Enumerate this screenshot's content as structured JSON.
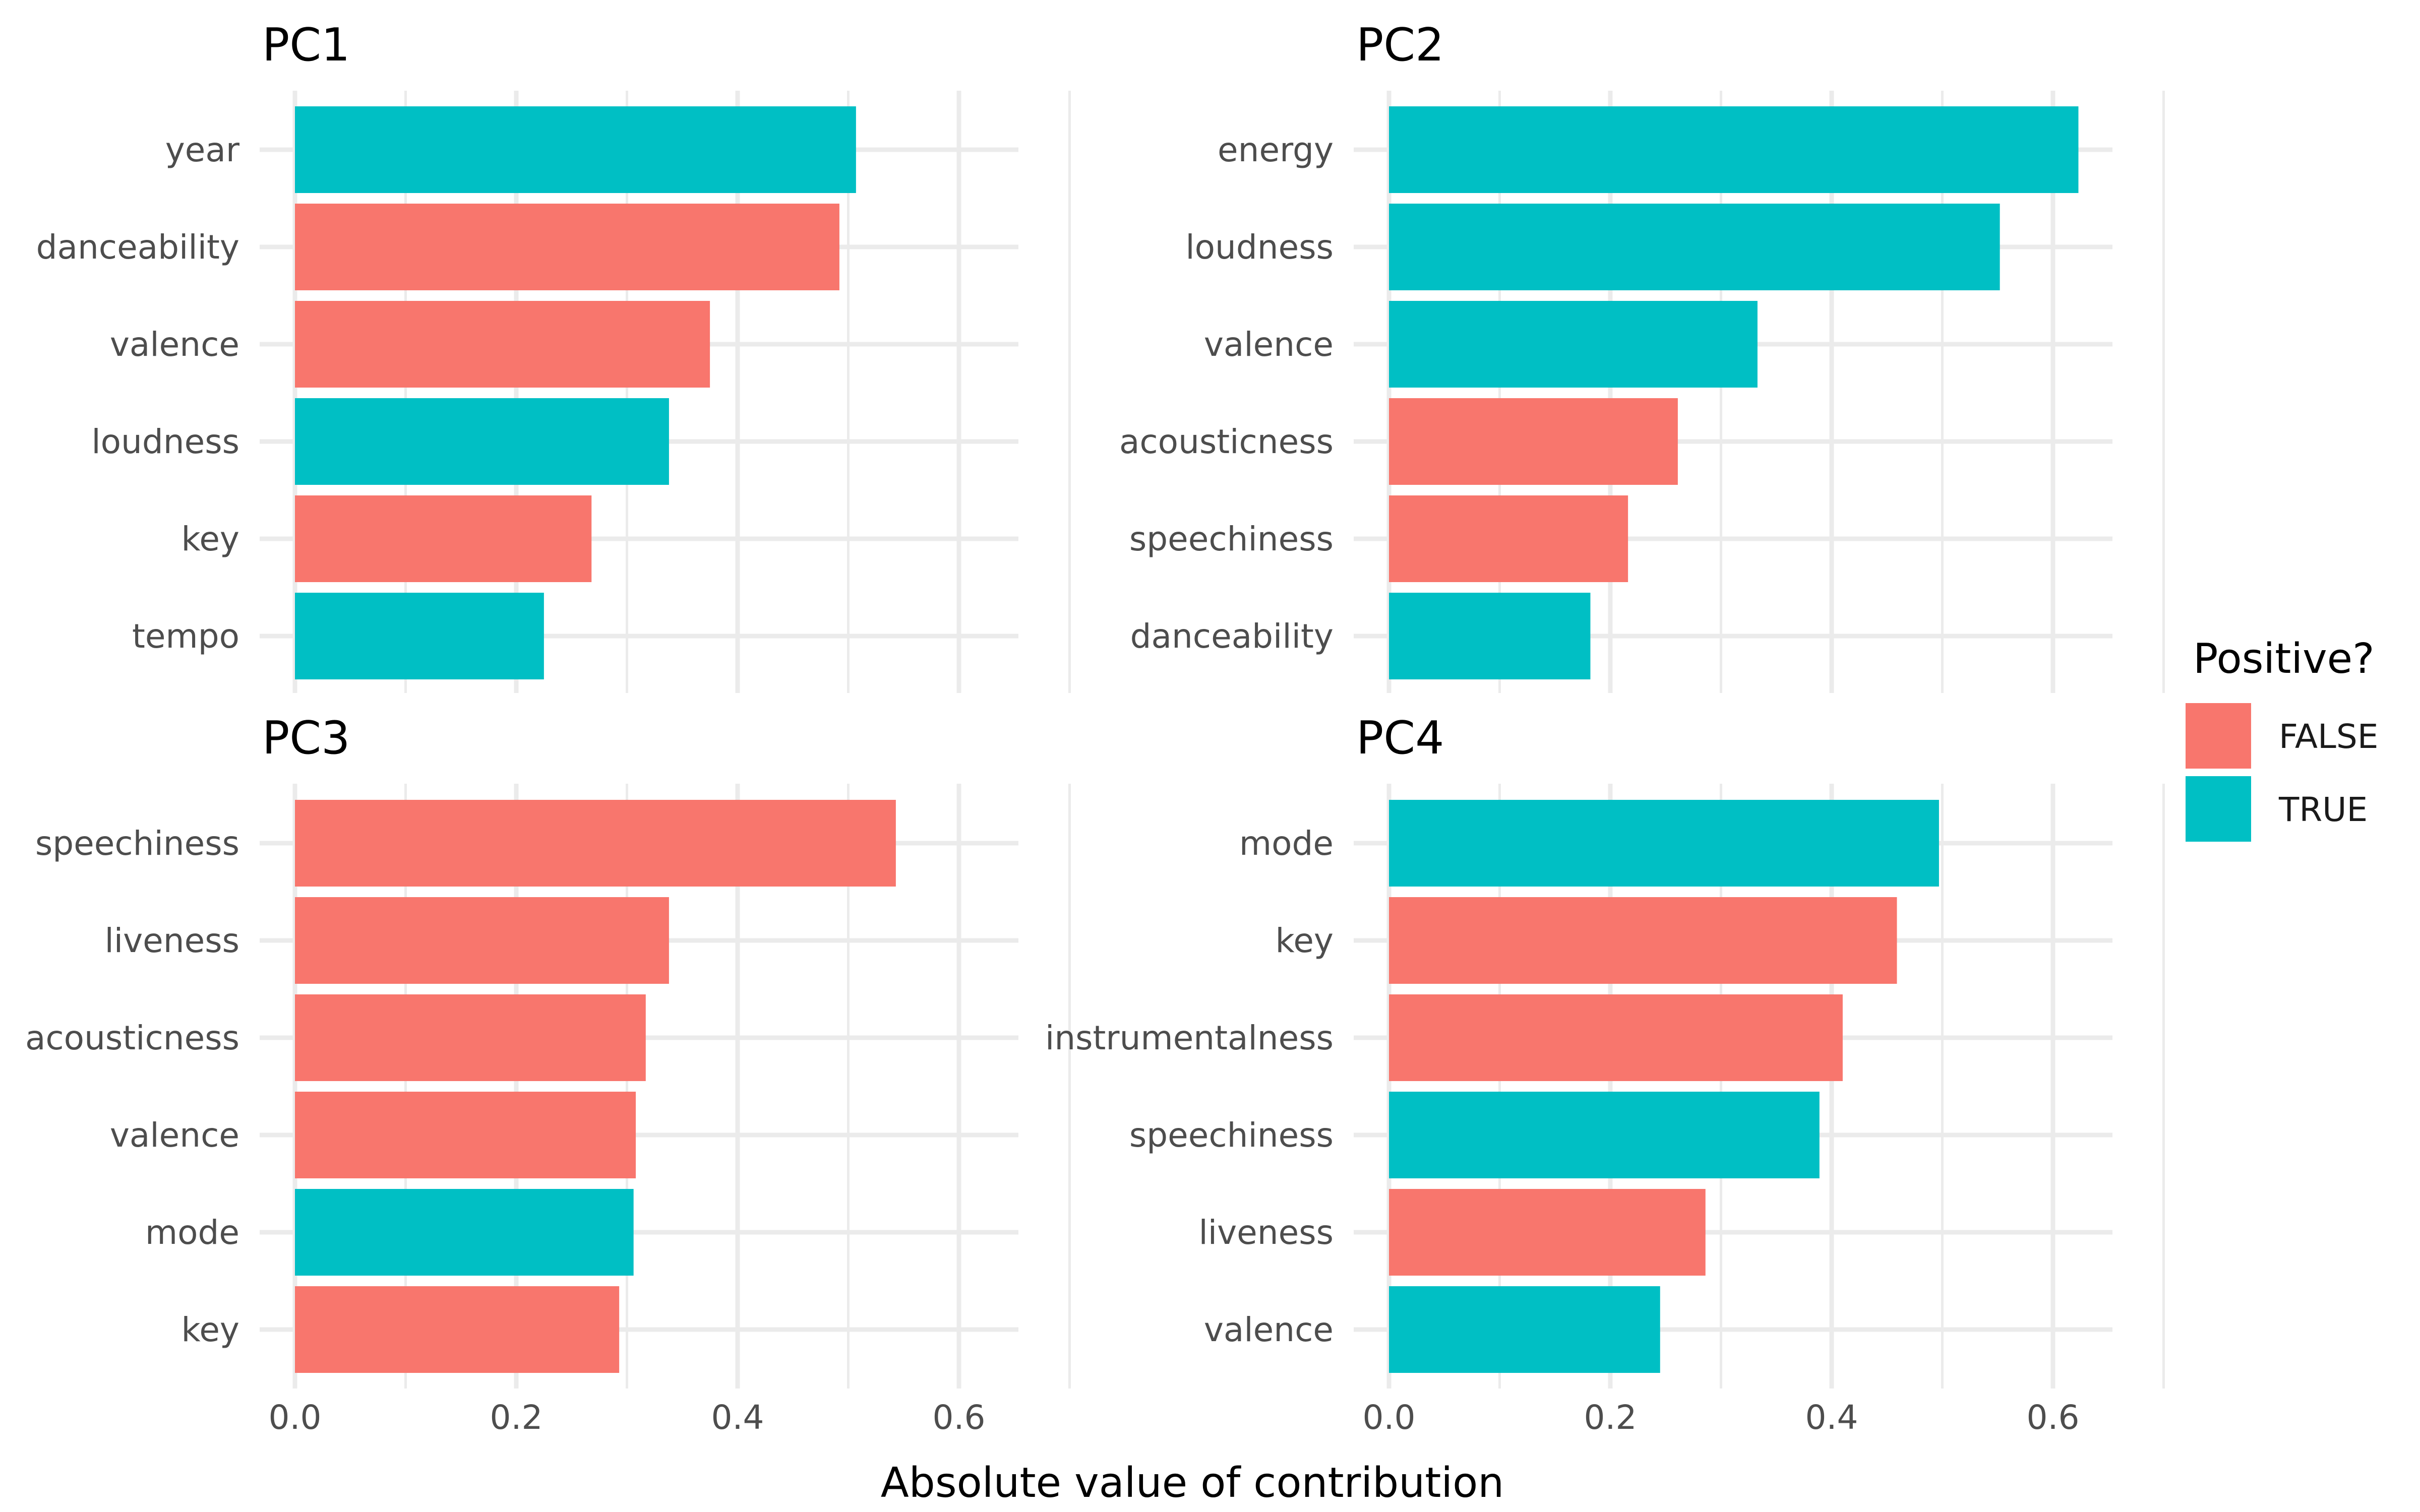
{
  "chart_data": {
    "type": "bar",
    "orientation": "horizontal",
    "xlabel": "Absolute value of contribution",
    "xlim": [
      0,
      0.65
    ],
    "xticks": [
      0,
      0.2,
      0.4,
      0.6
    ],
    "xtick_labels": [
      "0.0",
      "0.2",
      "0.4",
      "0.6"
    ],
    "grid": true,
    "legend": {
      "title": "Positive?",
      "position": "right",
      "entries": [
        {
          "label": "FALSE",
          "color": "#F8766D"
        },
        {
          "label": "TRUE",
          "color": "#00BFC4"
        }
      ]
    },
    "facets": [
      {
        "title": "PC1",
        "categories": [
          "year",
          "danceability",
          "valence",
          "loudness",
          "key",
          "tempo"
        ],
        "values": [
          0.507,
          0.492,
          0.375,
          0.338,
          0.268,
          0.225
        ],
        "positive": [
          true,
          false,
          false,
          true,
          false,
          true
        ]
      },
      {
        "title": "PC2",
        "categories": [
          "energy",
          "loudness",
          "valence",
          "acousticness",
          "speechiness",
          "danceability"
        ],
        "values": [
          0.623,
          0.552,
          0.333,
          0.261,
          0.216,
          0.182
        ],
        "positive": [
          true,
          true,
          true,
          false,
          false,
          true
        ]
      },
      {
        "title": "PC3",
        "categories": [
          "speechiness",
          "liveness",
          "acousticness",
          "valence",
          "mode",
          "key"
        ],
        "values": [
          0.543,
          0.338,
          0.317,
          0.308,
          0.306,
          0.293
        ],
        "positive": [
          false,
          false,
          false,
          false,
          true,
          false
        ]
      },
      {
        "title": "PC4",
        "categories": [
          "mode",
          "key",
          "instrumentalness",
          "speechiness",
          "liveness",
          "valence"
        ],
        "values": [
          0.497,
          0.459,
          0.41,
          0.389,
          0.286,
          0.245
        ],
        "positive": [
          true,
          false,
          false,
          true,
          false,
          true
        ]
      }
    ]
  }
}
